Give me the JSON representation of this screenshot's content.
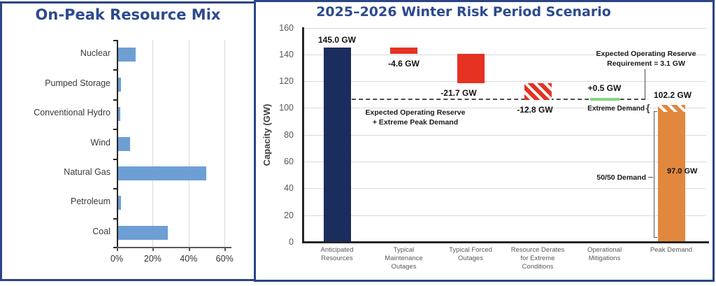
{
  "colors": {
    "panel_border": "#2b4584",
    "title_text": "#2c4a8e",
    "resource_mix_bar": "#6e9fd4",
    "anticipated_bar": "#1b2d5e",
    "outage_bar": "#e53222",
    "mitigation_line": "#84d584",
    "demand_bar": "#e1883e",
    "grid_line": "#d9d9d9",
    "axis_line": "#262626",
    "tick_text": "#595959"
  },
  "chart_data": [
    {
      "id": "on-peak-resource-mix",
      "type": "bar",
      "orientation": "horizontal",
      "title": "On-Peak Resource Mix",
      "categories": [
        "Nuclear",
        "Pumped Storage",
        "Conventional Hydro",
        "Wind",
        "Natural Gas",
        "Petroleum",
        "Coal"
      ],
      "values": [
        10,
        2,
        1.5,
        7,
        49.5,
        2,
        28
      ],
      "unit": "%",
      "xlim": [
        0,
        60
      ],
      "xticks": [
        0,
        20,
        40,
        60
      ],
      "xtick_labels": [
        "0%",
        "20%",
        "40%",
        "60%"
      ],
      "grid": "vertical",
      "legend": "none"
    },
    {
      "id": "winter-risk-waterfall",
      "type": "bar",
      "subtype": "waterfall",
      "title": "2025–2026 Winter Risk Period Scenario",
      "ylabel": "Capacity (GW)",
      "ylim": [
        0,
        160
      ],
      "yticks": [
        0,
        20,
        40,
        60,
        80,
        100,
        120,
        140,
        160
      ],
      "grid": "horizontal",
      "steps": [
        {
          "category": "Anticipated\nResources",
          "kind": "absolute",
          "value": 145.0,
          "label": "145.0 GW",
          "color": "#1b2d5e",
          "label_pos": "above"
        },
        {
          "category": "Typical\nMaintenance\nOutages",
          "kind": "delta",
          "value": -4.6,
          "label": "-4.6 GW",
          "color": "#e53222",
          "label_pos": "below"
        },
        {
          "category": "Typical Forced\nOutages",
          "kind": "delta",
          "value": -21.7,
          "label": "-21.7 GW",
          "color": "#e53222",
          "label_pos": "below"
        },
        {
          "category": "Resource Derates\nfor Extreme\nConditions",
          "kind": "delta",
          "value": -12.8,
          "label": "-12.8 GW",
          "color": "#e53222",
          "pattern": "hatched",
          "label_pos": "below"
        },
        {
          "category": "Operational\nMitigations",
          "kind": "delta-line",
          "value": 0.5,
          "label": "+0.5 GW",
          "color": "#84d584",
          "label_pos": "above"
        },
        {
          "category": "Peak Demand",
          "kind": "demand",
          "value": 102.2,
          "label": "102.2 GW",
          "solid_level": 97.0,
          "solid_label": "97.0 GW",
          "color": "#e1883e",
          "pattern": "hatched-top"
        }
      ],
      "levels_after_each_step": [
        145.0,
        140.4,
        118.7,
        105.9,
        106.4,
        102.2
      ],
      "dashed_line": {
        "level": 106.4
      },
      "annotations": {
        "reserve_requirement": {
          "line1": "Expected Operating Reserve",
          "line2": "Requirement = 3.1 GW"
        },
        "reserve_plus_extreme": {
          "line1": "Expected Operating Reserve",
          "line2": "+ Extreme Peak Demand"
        },
        "extreme_demand": "Extreme Demand",
        "fifty_fifty": "50/50 Demand",
        "brace_glyph": "{"
      }
    }
  ]
}
